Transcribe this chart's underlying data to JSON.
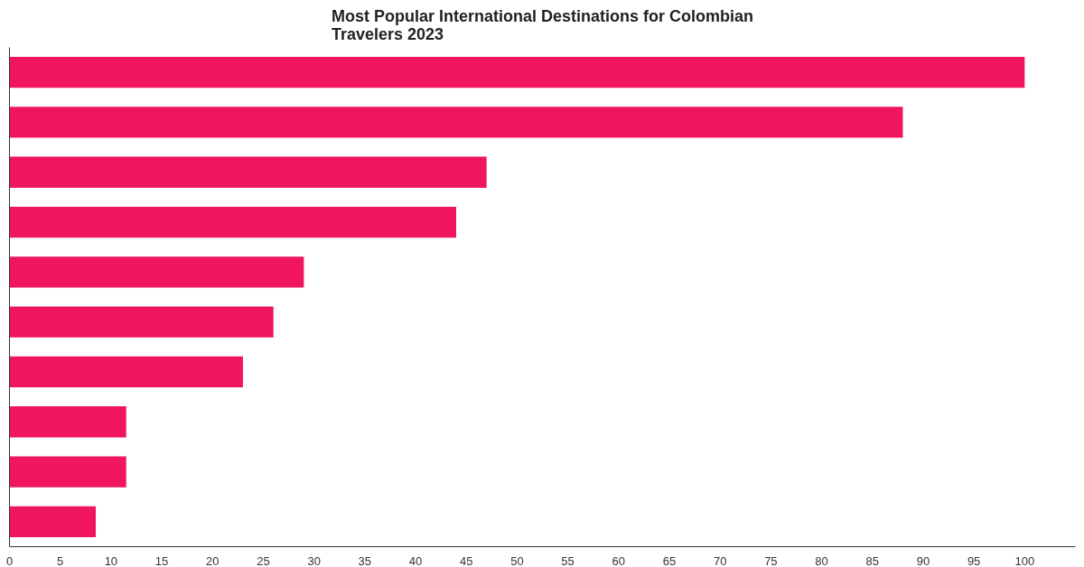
{
  "chart_data": {
    "type": "bar",
    "orientation": "horizontal",
    "title": "Most Popular International Destinations for Colombian\nTravelers 2023",
    "categories": [
      null,
      null,
      null,
      null,
      null,
      null,
      null,
      null,
      null,
      null
    ],
    "values": [
      100,
      88,
      47,
      44,
      29,
      26,
      23,
      11.5,
      11.5,
      8.5
    ],
    "color": "#f0155f",
    "xlim": [
      0,
      105
    ],
    "xticks": [
      0,
      5,
      10,
      15,
      20,
      25,
      30,
      35,
      40,
      45,
      50,
      55,
      60,
      65,
      70,
      75,
      80,
      85,
      90,
      95,
      100
    ],
    "grid": false,
    "tick_labels": "x"
  }
}
